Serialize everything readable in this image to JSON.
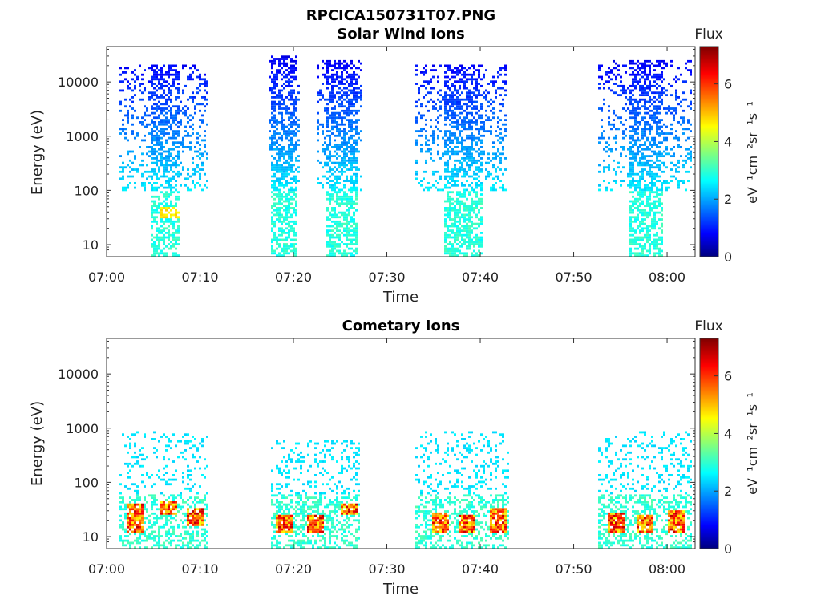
{
  "figure_title": "RPCICA150731T07.PNG",
  "chart_data": [
    {
      "type": "heatmap",
      "title": "Solar Wind Ions",
      "xlabel": "Time",
      "ylabel": "Energy (eV)",
      "x_ticks": [
        "07:00",
        "07:10",
        "07:20",
        "07:30",
        "07:40",
        "07:50",
        "08:00"
      ],
      "y_ticks": [
        "10",
        "100",
        "1000",
        "10000"
      ],
      "y_scale": "log",
      "ylim": [
        6,
        45000
      ],
      "xlim_minutes": [
        0,
        63
      ],
      "colorbar": {
        "label": "Flux",
        "unit_label": "eV⁻¹cm⁻²sr⁻¹s⁻¹",
        "ticks": [
          "0",
          "2",
          "4",
          "6"
        ],
        "range": [
          0,
          7.3
        ],
        "colormap": "jet"
      },
      "bursts": [
        {
          "start_min": 1.2,
          "end_min": 10.8,
          "core_start_min": 4.5,
          "core_end_min": 7.8,
          "e_max": 20000,
          "hot_e_min": 30,
          "hot_e_max": 50
        },
        {
          "start_min": 17.3,
          "end_min": 20.5,
          "core_start_min": 17.5,
          "core_end_min": 20.4,
          "e_max": 30000
        },
        {
          "start_min": 22.3,
          "end_min": 27.2,
          "core_start_min": 23.5,
          "core_end_min": 26.8,
          "e_max": 25000
        },
        {
          "start_min": 33.0,
          "end_min": 42.8,
          "core_start_min": 36.0,
          "core_end_min": 40.0,
          "e_max": 20000
        },
        {
          "start_min": 52.6,
          "end_min": 62.5,
          "core_start_min": 55.8,
          "core_end_min": 59.5,
          "e_max": 25000
        }
      ]
    },
    {
      "type": "heatmap",
      "title": "Cometary Ions",
      "xlabel": "Time",
      "ylabel": "Energy (eV)",
      "x_ticks": [
        "07:00",
        "07:10",
        "07:20",
        "07:30",
        "07:40",
        "07:50",
        "08:00"
      ],
      "y_ticks": [
        "10",
        "100",
        "1000",
        "10000"
      ],
      "y_scale": "log",
      "ylim": [
        6,
        45000
      ],
      "xlim_minutes": [
        0,
        63
      ],
      "colorbar": {
        "label": "Flux",
        "unit_label": "eV⁻¹cm⁻²sr⁻¹s⁻¹",
        "ticks": [
          "0",
          "2",
          "4",
          "6"
        ],
        "range": [
          0,
          7.3
        ],
        "colormap": "jet"
      },
      "bursts": [
        {
          "start_min": 1.2,
          "end_min": 10.8,
          "e_max": 900,
          "hot_centers_min": [
            3.0,
            6.5,
            9.3
          ],
          "hot_e": [
            [
              12,
              40
            ],
            [
              25,
              45
            ],
            [
              15,
              35
            ]
          ]
        },
        {
          "start_min": 17.5,
          "end_min": 27.0,
          "e_max": 600,
          "hot_centers_min": [
            18.8,
            22.3,
            25.8
          ],
          "hot_e": [
            [
              12,
              25
            ],
            [
              12,
              25
            ],
            [
              25,
              40
            ]
          ]
        },
        {
          "start_min": 33.0,
          "end_min": 43.0,
          "e_max": 900,
          "hot_centers_min": [
            35.5,
            38.5,
            41.8
          ],
          "hot_e": [
            [
              12,
              28
            ],
            [
              12,
              25
            ],
            [
              12,
              35
            ]
          ]
        },
        {
          "start_min": 52.6,
          "end_min": 62.5,
          "e_max": 900,
          "hot_centers_min": [
            54.5,
            57.5,
            60.8
          ],
          "hot_e": [
            [
              12,
              28
            ],
            [
              12,
              25
            ],
            [
              12,
              30
            ]
          ]
        }
      ]
    }
  ]
}
